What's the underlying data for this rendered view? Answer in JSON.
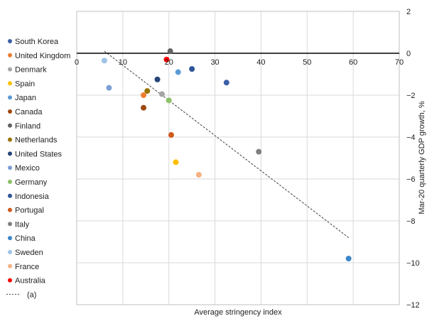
{
  "chart_data": {
    "type": "scatter",
    "title": "",
    "xlabel": "Average stringency index",
    "ylabel": "Mar-20 quarterly GDP growth, %",
    "xlim": [
      0,
      70
    ],
    "ylim": [
      -12,
      2
    ],
    "x_ticks": [
      0,
      10,
      20,
      30,
      40,
      50,
      60,
      70
    ],
    "y_ticks": [
      2,
      0,
      -2,
      -4,
      -6,
      -8,
      -10,
      -12
    ],
    "y_tick_labels": [
      "2",
      "0",
      "−2",
      "−4",
      "−6",
      "−8",
      "−10",
      "−12"
    ],
    "grid": true,
    "legend_position": "left",
    "points": [
      {
        "name": "South Korea",
        "x": 32.5,
        "y": -1.4,
        "color": "#3b5fa6"
      },
      {
        "name": "United Kingdom",
        "x": 14.5,
        "y": -2.0,
        "color": "#ed7d31"
      },
      {
        "name": "Denmark",
        "x": 18.5,
        "y": -1.95,
        "color": "#a5a5a5"
      },
      {
        "name": "Spain",
        "x": 21.5,
        "y": -5.2,
        "color": "#ffc000"
      },
      {
        "name": "Japan",
        "x": 22.0,
        "y": -0.9,
        "color": "#5b9bd5"
      },
      {
        "name": "Canada",
        "x": 14.5,
        "y": -2.6,
        "color": "#9e480e"
      },
      {
        "name": "Finland",
        "x": 20.3,
        "y": 0.1,
        "color": "#636363"
      },
      {
        "name": "Netherlands",
        "x": 15.3,
        "y": -1.8,
        "color": "#997300"
      },
      {
        "name": "United States",
        "x": 17.5,
        "y": -1.25,
        "color": "#264478"
      },
      {
        "name": "Mexico",
        "x": 7.0,
        "y": -1.65,
        "color": "#7c9fd6"
      },
      {
        "name": "Germany",
        "x": 20.0,
        "y": -2.25,
        "color": "#8cc168"
      },
      {
        "name": "Indonesia",
        "x": 25.0,
        "y": -0.75,
        "color": "#2e5597"
      },
      {
        "name": "Portugal",
        "x": 20.5,
        "y": -3.9,
        "color": "#d05a1c"
      },
      {
        "name": "Italy",
        "x": 39.5,
        "y": -4.7,
        "color": "#7f7f7f"
      },
      {
        "name": "China",
        "x": 59.0,
        "y": -9.8,
        "color": "#3a86c8"
      },
      {
        "name": "Sweden",
        "x": 6.0,
        "y": -0.35,
        "color": "#9dc3e6"
      },
      {
        "name": "France",
        "x": 26.5,
        "y": -5.8,
        "color": "#f4b183"
      },
      {
        "name": "Australia",
        "x": 19.5,
        "y": -0.3,
        "color": "#ff0000"
      }
    ],
    "trendline": {
      "label": "(a)",
      "x": [
        6,
        59
      ],
      "y": [
        0.1,
        -8.8
      ],
      "color": "#404040"
    }
  }
}
